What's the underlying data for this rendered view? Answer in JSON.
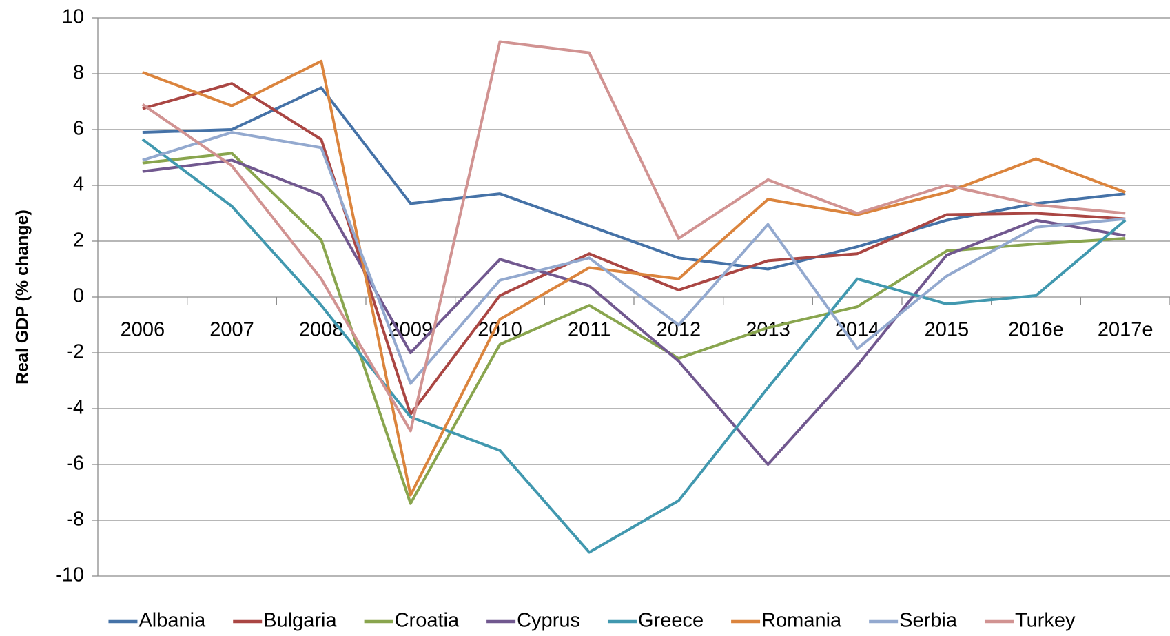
{
  "chart_data": {
    "type": "line",
    "y_label": "Real GDP (% change)",
    "categories": [
      "2006",
      "2007",
      "2008",
      "2009",
      "2010",
      "2011",
      "2012",
      "2013",
      "2014",
      "2015",
      "2016e",
      "2017e"
    ],
    "ylim": [
      -10,
      10
    ],
    "yticks": [
      -10,
      -8,
      -6,
      -4,
      -2,
      0,
      2,
      4,
      6,
      8,
      10
    ],
    "grid": true,
    "legend": "bottom",
    "series": [
      {
        "name": "Albania",
        "color": "#4572a7",
        "values": [
          5.9,
          6.0,
          7.5,
          3.35,
          3.7,
          2.55,
          1.4,
          1.0,
          1.8,
          2.75,
          3.35,
          3.7
        ]
      },
      {
        "name": "Bulgaria",
        "color": "#aa4643",
        "values": [
          6.75,
          7.65,
          5.65,
          -4.2,
          0.05,
          1.55,
          0.25,
          1.3,
          1.55,
          2.95,
          3.0,
          2.8
        ]
      },
      {
        "name": "Croatia",
        "color": "#89a54e",
        "values": [
          4.8,
          5.15,
          2.05,
          -7.4,
          -1.7,
          -0.3,
          -2.2,
          -1.1,
          -0.35,
          1.65,
          1.9,
          2.1
        ]
      },
      {
        "name": "Cyprus",
        "color": "#71588f",
        "values": [
          4.5,
          4.9,
          3.65,
          -2.0,
          1.35,
          0.4,
          -2.3,
          -6.0,
          -2.45,
          1.5,
          2.75,
          2.2
        ]
      },
      {
        "name": "Greece",
        "color": "#4198af",
        "values": [
          5.65,
          3.25,
          -0.3,
          -4.3,
          -5.5,
          -9.15,
          -7.3,
          -3.25,
          0.65,
          -0.25,
          0.05,
          2.75
        ]
      },
      {
        "name": "Romania",
        "color": "#db843d",
        "values": [
          8.05,
          6.85,
          8.45,
          -7.1,
          -0.8,
          1.05,
          0.65,
          3.5,
          2.95,
          3.75,
          4.95,
          3.75
        ]
      },
      {
        "name": "Serbia",
        "color": "#93a9cf",
        "values": [
          4.9,
          5.9,
          5.35,
          -3.1,
          0.6,
          1.4,
          -1.0,
          2.6,
          -1.85,
          0.75,
          2.5,
          2.8
        ]
      },
      {
        "name": "Turkey",
        "color": "#d19392",
        "values": [
          6.9,
          4.7,
          0.65,
          -4.8,
          9.15,
          8.75,
          2.1,
          4.2,
          3.0,
          4.0,
          3.3,
          3.0
        ]
      }
    ]
  }
}
